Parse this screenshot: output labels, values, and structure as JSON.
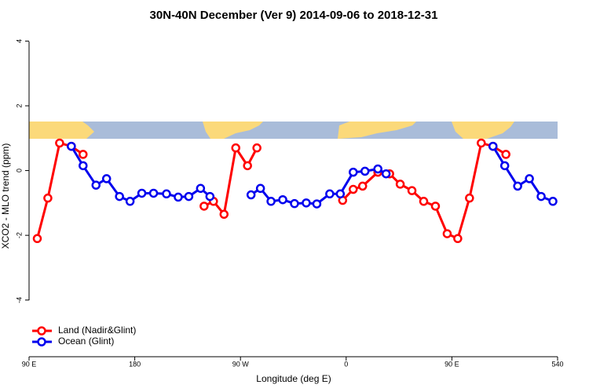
{
  "chart_data": {
    "type": "line",
    "title": "30N-40N December (Ver 9)   2014-09-06 to 2018-12-31",
    "x_label": "Longitude (deg E)",
    "y_label": "XCO2 - MLO trend (ppm)",
    "xlim": [
      90,
      540
    ],
    "ylim": [
      -5.75,
      4.3
    ],
    "xticks": [
      {
        "value": 90,
        "label": "90 E"
      },
      180,
      {
        "value": 270,
        "label": "90 W"
      },
      {
        "value": 360,
        "label": "0"
      },
      {
        "value": 450,
        "label": "90 E"
      },
      540
    ],
    "yticks": [
      -4,
      -2,
      0,
      2,
      4
    ],
    "legend": "bottom-left",
    "series": [
      {
        "name": "Land (Nadir&Glint)",
        "color": "#ff0000",
        "x": [
          97,
          106,
          116,
          126,
          136,
          null,
          239,
          247,
          256,
          266,
          276,
          284,
          null,
          357,
          366,
          374,
          387,
          397,
          406,
          416,
          426,
          436,
          446,
          455,
          465,
          475,
          485,
          496
        ],
        "values": [
          -2.1,
          -0.85,
          0.85,
          0.75,
          0.5,
          null,
          -1.1,
          -0.95,
          -1.35,
          0.7,
          0.15,
          0.7,
          null,
          -0.92,
          -0.58,
          -0.48,
          -0.05,
          -0.1,
          -0.42,
          -0.62,
          -0.95,
          -1.1,
          -1.95,
          -2.1,
          -0.85,
          0.85,
          0.75,
          0.5
        ]
      },
      {
        "name": "Ocean (Glint)",
        "color": "#0000ee",
        "x": [
          126,
          136,
          147,
          156,
          167,
          176,
          186,
          196,
          207,
          217,
          226,
          236,
          244,
          null,
          279,
          287,
          296,
          306,
          316,
          326,
          335,
          346,
          355,
          366,
          376,
          387,
          394,
          null,
          485,
          495,
          506,
          516,
          526,
          536
        ],
        "values": [
          0.75,
          0.15,
          -0.45,
          -0.25,
          -0.8,
          -0.95,
          -0.7,
          -0.7,
          -0.72,
          -0.82,
          -0.8,
          -0.55,
          -0.8,
          null,
          -0.75,
          -0.55,
          -0.95,
          -0.9,
          -1.02,
          -1.0,
          -1.03,
          -0.72,
          -0.72,
          -0.05,
          -0.02,
          0.05,
          -0.1,
          null,
          0.75,
          0.15,
          -0.48,
          -0.25,
          -0.8,
          -0.95
        ]
      }
    ]
  }
}
